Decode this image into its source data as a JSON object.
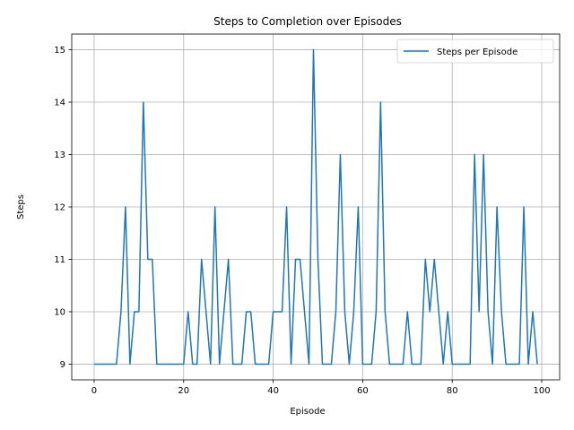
{
  "chart_data": {
    "type": "line",
    "title": "Steps to Completion over Episodes",
    "xlabel": "Episode",
    "ylabel": "Steps",
    "xlim": [
      -5,
      104
    ],
    "ylim": [
      8.7,
      15.3
    ],
    "xticks": [
      0,
      20,
      40,
      60,
      80,
      100
    ],
    "yticks": [
      9,
      10,
      11,
      12,
      13,
      14,
      15
    ],
    "grid": true,
    "legend_position": "top-right",
    "series": [
      {
        "name": "Steps per Episode",
        "color": "#1f77b4",
        "x": [
          0,
          1,
          2,
          3,
          4,
          5,
          6,
          7,
          8,
          9,
          10,
          11,
          12,
          13,
          14,
          15,
          16,
          17,
          18,
          19,
          20,
          21,
          22,
          23,
          24,
          25,
          26,
          27,
          28,
          29,
          30,
          31,
          32,
          33,
          34,
          35,
          36,
          37,
          38,
          39,
          40,
          41,
          42,
          43,
          44,
          45,
          46,
          47,
          48,
          49,
          50,
          51,
          52,
          53,
          54,
          55,
          56,
          57,
          58,
          59,
          60,
          61,
          62,
          63,
          64,
          65,
          66,
          67,
          68,
          69,
          70,
          71,
          72,
          73,
          74,
          75,
          76,
          77,
          78,
          79,
          80,
          81,
          82,
          83,
          84,
          85,
          86,
          87,
          88,
          89,
          90,
          91,
          92,
          93,
          94,
          95,
          96,
          97,
          98,
          99
        ],
        "values": [
          9,
          9,
          9,
          9,
          9,
          9,
          10,
          12,
          9,
          10,
          10,
          14,
          11,
          11,
          9,
          9,
          9,
          9,
          9,
          9,
          9,
          10,
          9,
          9,
          11,
          10,
          9,
          12,
          9,
          10,
          11,
          9,
          9,
          9,
          10,
          10,
          9,
          9,
          9,
          9,
          10,
          10,
          10,
          12,
          9,
          11,
          11,
          10,
          9,
          15,
          11,
          9,
          9,
          9,
          10,
          13,
          10,
          9,
          10,
          12,
          9,
          9,
          9,
          10,
          14,
          10,
          9,
          9,
          9,
          9,
          10,
          9,
          9,
          9,
          11,
          10,
          11,
          10,
          9,
          10,
          9,
          9,
          9,
          9,
          9,
          13,
          10,
          13,
          10,
          9,
          12,
          10,
          9,
          9,
          9,
          9,
          12,
          9,
          10,
          9
        ]
      }
    ]
  }
}
